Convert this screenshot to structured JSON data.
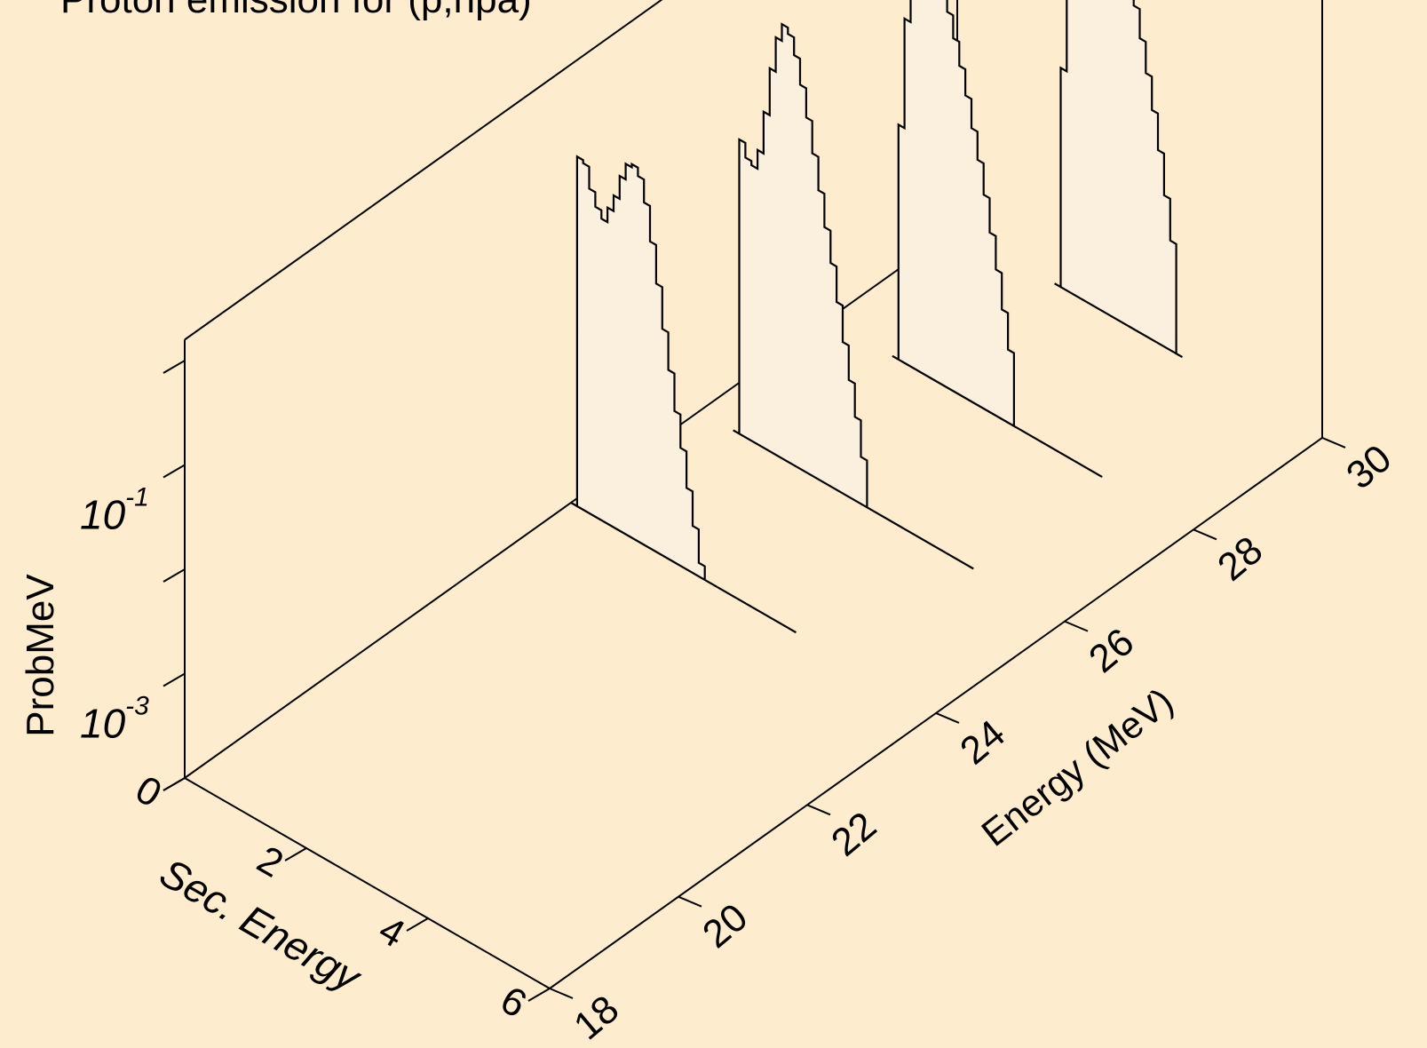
{
  "chart_data": {
    "type": "area",
    "title": "Proton emission for (p,npa)",
    "xlabel": "Sec. Energy",
    "ylabel": "Energy (MeV)",
    "zlabel": "ProbMeV",
    "x_ticks": [
      "0",
      "2",
      "4",
      "6"
    ],
    "y_ticks": [
      "18",
      "20",
      "22",
      "24",
      "26",
      "28",
      "30"
    ],
    "z_major_ticks": [
      {
        "base": "10",
        "exp": "-3"
      },
      {
        "base": "10",
        "exp": "-1"
      }
    ],
    "xlim": [
      0,
      6
    ],
    "ylim": [
      18,
      30
    ],
    "zlim_log10": [
      -4,
      0.2
    ],
    "z_scale": "log",
    "grid": false,
    "series": [
      {
        "incident_energy": 24,
        "x": [
          0,
          0.1,
          0.2,
          0.3,
          0.4,
          0.5,
          0.6,
          0.7,
          0.8,
          0.9,
          1.0,
          1.1,
          1.2,
          1.3,
          1.4,
          1.5,
          1.6,
          1.7,
          1.8,
          1.9,
          2.0,
          2.1,
          2.2,
          2.3
        ],
        "log10_prob": [
          -4.0,
          -0.65,
          -0.68,
          -0.89,
          -1.03,
          -1.11,
          -0.97,
          -0.82,
          -0.6,
          -0.45,
          -0.42,
          -0.5,
          -0.72,
          -1.06,
          -1.43,
          -1.83,
          -2.19,
          -2.55,
          -2.87,
          -3.22,
          -3.55,
          -3.87,
          -4.0,
          -4.0
        ],
        "tail_to_x": 3.7
      },
      {
        "incident_energy": 26,
        "x": [
          0.55,
          0.65,
          0.75,
          0.85,
          0.95,
          1.05,
          1.15,
          1.25,
          1.35,
          1.45,
          1.55,
          1.65,
          1.75,
          1.85,
          1.95,
          2.05,
          2.15,
          2.25,
          2.35,
          2.45,
          2.55,
          2.65,
          2.75
        ],
        "log10_prob": [
          -4.0,
          -1.18,
          -1.32,
          -1.36,
          -1.18,
          -0.78,
          -0.33,
          0.0,
          0.16,
          0.1,
          -0.07,
          -0.32,
          -0.6,
          -0.91,
          -1.23,
          -1.55,
          -1.86,
          -2.2,
          -2.55,
          -2.88,
          -3.2,
          -3.55,
          -4.0
        ],
        "tail_to_x": 4.5
      },
      {
        "incident_energy": 28,
        "x": [
          1.05,
          1.15,
          1.25,
          1.35,
          1.45,
          1.55,
          1.65,
          1.75,
          1.85,
          1.95,
          2.05,
          2.15,
          2.25,
          2.35,
          2.45,
          2.55,
          2.65,
          2.75,
          2.85,
          2.95,
          3.05
        ],
        "log10_prob": [
          -4.0,
          -1.75,
          -0.7,
          -0.2,
          0.05,
          0.15,
          0.12,
          0.0,
          -0.2,
          -0.4,
          -0.62,
          -0.85,
          -1.1,
          -1.38,
          -1.65,
          -1.95,
          -2.28,
          -2.6,
          -2.95,
          -3.3,
          -4.0
        ],
        "tail_to_x": 4.5
      },
      {
        "incident_energy": 30,
        "x": [
          1.6,
          1.7,
          1.8,
          1.9,
          2.0,
          2.1,
          2.2,
          2.3,
          2.4,
          2.5,
          2.6,
          2.7,
          2.8,
          2.9,
          3.0,
          3.1,
          3.2,
          3.3,
          3.4,
          3.5,
          3.6
        ],
        "log10_prob": [
          -4.0,
          -1.9,
          -1.0,
          -0.35,
          0.0,
          0.18,
          0.25,
          0.2,
          0.1,
          -0.05,
          -0.22,
          -0.42,
          -0.65,
          -0.9,
          -1.18,
          -1.48,
          -1.8,
          -2.15,
          -2.55,
          -2.95,
          -4.0
        ],
        "tail_to_x": 0
      }
    ]
  }
}
